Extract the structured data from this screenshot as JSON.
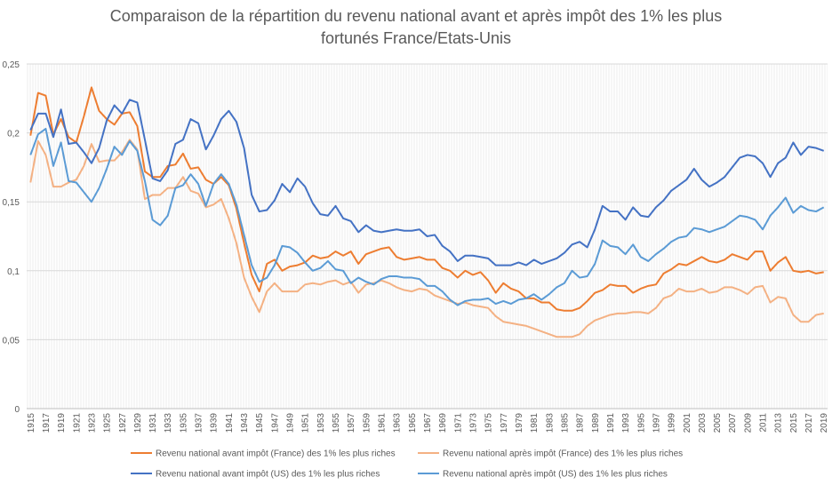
{
  "chart_data": {
    "type": "line",
    "title_line1": "Comparaison de la répartition du revenu national avant et après impôt des 1% les plus",
    "title_line2": "fortunés France/Etats-Unis",
    "xlabel": "",
    "ylabel": "",
    "ylim": [
      0,
      0.25
    ],
    "yticks": [
      "0",
      "0,05",
      "0,1",
      "0,15",
      "0,2",
      "0,25"
    ],
    "x_start": 1915,
    "x_end": 2019,
    "x_tick_labels": [
      "1915",
      "1917",
      "1919",
      "1921",
      "1923",
      "1925",
      "1927",
      "1929",
      "1931",
      "1933",
      "1935",
      "1937",
      "1939",
      "1941",
      "1943",
      "1945",
      "1947",
      "1949",
      "1951",
      "1953",
      "1955",
      "1957",
      "1959",
      "1961",
      "1963",
      "1965",
      "1967",
      "1969",
      "1971",
      "1973",
      "1975",
      "1977",
      "1979",
      "1981",
      "1983",
      "1985",
      "1987",
      "1989",
      "1991",
      "1993",
      "1995",
      "1997",
      "1999",
      "2001",
      "2003",
      "2005",
      "2007",
      "2009",
      "2011",
      "2013",
      "2015",
      "2017",
      "2019"
    ],
    "grid": true,
    "legend_position": "bottom",
    "series": [
      {
        "name": "Revenu national avant impôt (France) des 1% les plus riches",
        "color": "#ED7D31",
        "values": [
          0.198,
          0.229,
          0.227,
          0.199,
          0.21,
          0.197,
          0.193,
          0.212,
          0.233,
          0.216,
          0.21,
          0.206,
          0.214,
          0.215,
          0.205,
          0.172,
          0.168,
          0.168,
          0.176,
          0.177,
          0.185,
          0.174,
          0.175,
          0.166,
          0.163,
          0.168,
          0.162,
          0.145,
          0.12,
          0.097,
          0.085,
          0.105,
          0.108,
          0.1,
          0.103,
          0.104,
          0.106,
          0.111,
          0.109,
          0.11,
          0.114,
          0.111,
          0.114,
          0.105,
          0.112,
          0.114,
          0.116,
          0.117,
          0.11,
          0.108,
          0.109,
          0.11,
          0.108,
          0.108,
          0.102,
          0.1,
          0.095,
          0.1,
          0.097,
          0.099,
          0.093,
          0.084,
          0.091,
          0.087,
          0.085,
          0.08,
          0.08,
          0.077,
          0.077,
          0.072,
          0.071,
          0.071,
          0.073,
          0.078,
          0.084,
          0.086,
          0.09,
          0.089,
          0.089,
          0.084,
          0.087,
          0.089,
          0.09,
          0.098,
          0.101,
          0.105,
          0.104,
          0.107,
          0.11,
          0.107,
          0.106,
          0.108,
          0.112,
          0.11,
          0.108,
          0.114,
          0.114,
          0.1,
          0.106,
          0.11,
          0.1,
          0.099,
          0.1,
          0.098,
          0.099
        ]
      },
      {
        "name": "Revenu national après impôt (France) des 1% les plus riches",
        "color": "#F4B183",
        "values": [
          0.164,
          0.194,
          0.184,
          0.161,
          0.161,
          0.164,
          0.166,
          0.176,
          0.192,
          0.179,
          0.18,
          0.18,
          0.186,
          0.195,
          0.188,
          0.152,
          0.155,
          0.155,
          0.16,
          0.16,
          0.168,
          0.158,
          0.156,
          0.146,
          0.148,
          0.152,
          0.138,
          0.12,
          0.095,
          0.081,
          0.07,
          0.085,
          0.091,
          0.085,
          0.085,
          0.085,
          0.09,
          0.091,
          0.09,
          0.092,
          0.093,
          0.09,
          0.092,
          0.084,
          0.09,
          0.091,
          0.093,
          0.091,
          0.088,
          0.086,
          0.085,
          0.087,
          0.086,
          0.082,
          0.08,
          0.078,
          0.076,
          0.077,
          0.075,
          0.074,
          0.073,
          0.067,
          0.063,
          0.062,
          0.061,
          0.06,
          0.058,
          0.056,
          0.054,
          0.052,
          0.052,
          0.052,
          0.054,
          0.06,
          0.064,
          0.066,
          0.068,
          0.069,
          0.069,
          0.07,
          0.07,
          0.069,
          0.073,
          0.08,
          0.082,
          0.087,
          0.085,
          0.085,
          0.087,
          0.084,
          0.085,
          0.088,
          0.088,
          0.086,
          0.083,
          0.088,
          0.089,
          0.077,
          0.081,
          0.08,
          0.068,
          0.063,
          0.063,
          0.068,
          0.069
        ]
      },
      {
        "name": "Revenu national avant impôt (US) des 1% les plus riches",
        "color": "#4472C4",
        "values": [
          0.202,
          0.214,
          0.214,
          0.197,
          0.217,
          0.192,
          0.193,
          0.186,
          0.178,
          0.189,
          0.209,
          0.22,
          0.214,
          0.224,
          0.222,
          0.195,
          0.167,
          0.165,
          0.173,
          0.192,
          0.195,
          0.21,
          0.207,
          0.188,
          0.198,
          0.21,
          0.216,
          0.208,
          0.189,
          0.155,
          0.143,
          0.144,
          0.151,
          0.163,
          0.157,
          0.167,
          0.161,
          0.149,
          0.141,
          0.14,
          0.147,
          0.138,
          0.136,
          0.128,
          0.133,
          0.129,
          0.128,
          0.129,
          0.13,
          0.129,
          0.129,
          0.13,
          0.125,
          0.126,
          0.118,
          0.114,
          0.107,
          0.111,
          0.111,
          0.11,
          0.109,
          0.104,
          0.104,
          0.104,
          0.106,
          0.104,
          0.108,
          0.105,
          0.107,
          0.109,
          0.113,
          0.119,
          0.121,
          0.117,
          0.13,
          0.147,
          0.143,
          0.143,
          0.137,
          0.146,
          0.14,
          0.139,
          0.146,
          0.151,
          0.158,
          0.162,
          0.166,
          0.174,
          0.166,
          0.161,
          0.164,
          0.168,
          0.175,
          0.182,
          0.184,
          0.183,
          0.178,
          0.168,
          0.178,
          0.182,
          0.193,
          0.184,
          0.19,
          0.189,
          0.187
        ]
      },
      {
        "name": "Revenu national après impôt (US) des 1% les plus riches",
        "color": "#5B9BD5",
        "values": [
          0.184,
          0.199,
          0.203,
          0.176,
          0.193,
          0.165,
          0.164,
          0.157,
          0.15,
          0.16,
          0.174,
          0.19,
          0.184,
          0.194,
          0.187,
          0.165,
          0.137,
          0.133,
          0.14,
          0.16,
          0.162,
          0.17,
          0.163,
          0.147,
          0.163,
          0.17,
          0.163,
          0.148,
          0.126,
          0.104,
          0.092,
          0.095,
          0.104,
          0.118,
          0.117,
          0.113,
          0.106,
          0.1,
          0.102,
          0.107,
          0.101,
          0.1,
          0.091,
          0.095,
          0.092,
          0.09,
          0.094,
          0.096,
          0.096,
          0.095,
          0.095,
          0.094,
          0.089,
          0.089,
          0.085,
          0.079,
          0.075,
          0.078,
          0.079,
          0.079,
          0.08,
          0.076,
          0.078,
          0.076,
          0.079,
          0.08,
          0.083,
          0.079,
          0.083,
          0.088,
          0.091,
          0.1,
          0.095,
          0.096,
          0.105,
          0.122,
          0.118,
          0.117,
          0.112,
          0.119,
          0.11,
          0.107,
          0.112,
          0.116,
          0.121,
          0.124,
          0.125,
          0.131,
          0.13,
          0.128,
          0.13,
          0.132,
          0.136,
          0.14,
          0.139,
          0.137,
          0.13,
          0.14,
          0.146,
          0.153,
          0.142,
          0.147,
          0.144,
          0.143,
          0.146
        ]
      }
    ]
  }
}
